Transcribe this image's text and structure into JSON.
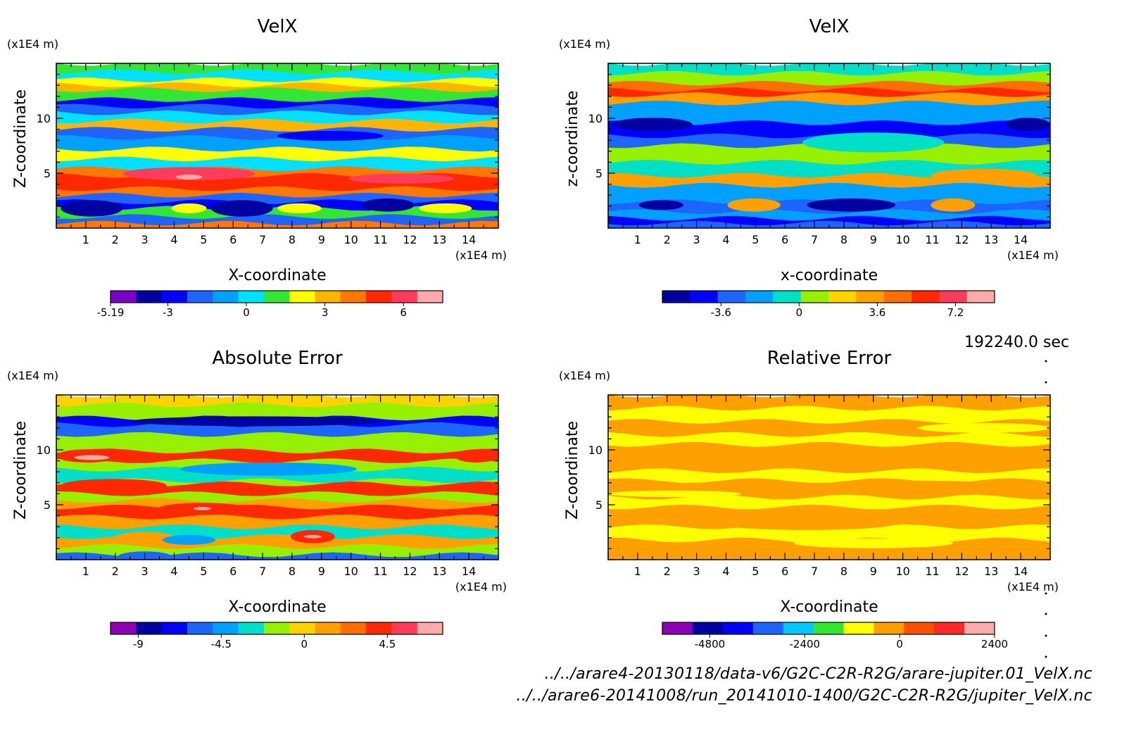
{
  "time_label": "192240.0 sec",
  "footer": {
    "line1": "../../arare4-20130118/data-v6/G2C-C2R-R2G/arare-jupiter.01_VelX.nc",
    "line2": "../../arare6-20141008/run_20141010-1400/G2C-C2R-R2G/jupiter_VelX.nc"
  },
  "chart_data": [
    {
      "type": "heatmap",
      "title": "VelX",
      "xlabel": "X-coordinate",
      "ylabel": "Z-coordinate",
      "unit_label_y": "(x1E4 m)",
      "unit_label_x": "(x1E4 m)",
      "x_ticks": [
        "1",
        "2",
        "3",
        "4",
        "5",
        "6",
        "7",
        "8",
        "9",
        "10",
        "11",
        "12",
        "13",
        "14"
      ],
      "y_ticks": [
        "5",
        "10"
      ],
      "xlim": [
        0,
        15
      ],
      "ylim": [
        0,
        15
      ],
      "colorbar": {
        "tick_labels": [
          "-5.19",
          "-3",
          "0",
          "3",
          "6"
        ],
        "tick_values": [
          -5.19,
          -3,
          0,
          3,
          6
        ],
        "range": [
          -5.19,
          7.5
        ],
        "colors": [
          "#7b00c8",
          "#0000a0",
          "#0000ff",
          "#1e64ff",
          "#00a0ff",
          "#00e0ff",
          "#32e632",
          "#ffff00",
          "#ffb400",
          "#ff7800",
          "#ff2800",
          "#ff3c5a",
          "#ffaaaa"
        ]
      }
    },
    {
      "type": "heatmap",
      "title": "VelX",
      "xlabel": "x-coordinate",
      "ylabel": "z-coordinate",
      "unit_label_y": "(x1E4 m)",
      "unit_label_x": "(x1E4 m)",
      "x_ticks": [
        "1",
        "2",
        "3",
        "4",
        "5",
        "6",
        "7",
        "8",
        "9",
        "10",
        "11",
        "12",
        "13",
        "14"
      ],
      "y_ticks": [
        "5",
        "10"
      ],
      "xlim": [
        0,
        15
      ],
      "ylim": [
        0,
        15
      ],
      "colorbar": {
        "tick_labels": [
          "-3.6",
          "0",
          "3.6",
          "7.2"
        ],
        "tick_values": [
          -3.6,
          0,
          3.6,
          7.2
        ],
        "range": [
          -6.3,
          9.0
        ],
        "colors": [
          "#0000a0",
          "#0000ff",
          "#1e64ff",
          "#00a0ff",
          "#00e0c8",
          "#96f000",
          "#ffd200",
          "#ffa000",
          "#ff6e00",
          "#ff2800",
          "#ff3c5a",
          "#ffaaaa"
        ]
      }
    },
    {
      "type": "heatmap",
      "title": "Absolute Error",
      "xlabel": "X-coordinate",
      "ylabel": "Z-coordinate",
      "unit_label_y": "(x1E4 m)",
      "unit_label_x": "(x1E4 m)",
      "x_ticks": [
        "1",
        "2",
        "3",
        "4",
        "5",
        "6",
        "7",
        "8",
        "9",
        "10",
        "11",
        "12",
        "13",
        "14"
      ],
      "y_ticks": [
        "5",
        "10"
      ],
      "xlim": [
        0,
        15
      ],
      "ylim": [
        0,
        15
      ],
      "colorbar": {
        "tick_labels": [
          "-9",
          "-4.5",
          "0",
          "4.5"
        ],
        "tick_values": [
          -9,
          -4.5,
          0,
          4.5
        ],
        "range": [
          -10.5,
          7.5
        ],
        "colors": [
          "#8c00b4",
          "#0000a0",
          "#0000ff",
          "#1e64ff",
          "#00a0ff",
          "#00e0c8",
          "#96f000",
          "#ffd200",
          "#ffa000",
          "#ff6e00",
          "#ff2800",
          "#ff3c5a",
          "#ffaaaa"
        ]
      }
    },
    {
      "type": "heatmap",
      "title": "Relative Error",
      "xlabel": "X-coordinate",
      "ylabel": "Z-coordinate",
      "unit_label_y": "(x1E4 m)",
      "unit_label_x": "(x1E4 m)",
      "x_ticks": [
        "1",
        "2",
        "3",
        "4",
        "5",
        "6",
        "7",
        "8",
        "9",
        "10",
        "11",
        "12",
        "13",
        "14"
      ],
      "y_ticks": [
        "5",
        "10"
      ],
      "xlim": [
        0,
        15
      ],
      "ylim": [
        0,
        15
      ],
      "colorbar": {
        "tick_labels": [
          "-4800",
          "-2400",
          "0",
          "2400"
        ],
        "tick_values": [
          -4800,
          -2400,
          0,
          2400
        ],
        "range": [
          -6000,
          2400
        ],
        "colors": [
          "#8c00b4",
          "#0000a0",
          "#0000ff",
          "#1e64ff",
          "#00c8ff",
          "#32e632",
          "#ffff00",
          "#ffa000",
          "#ff5000",
          "#ff2828",
          "#ffaaaa"
        ]
      }
    }
  ]
}
